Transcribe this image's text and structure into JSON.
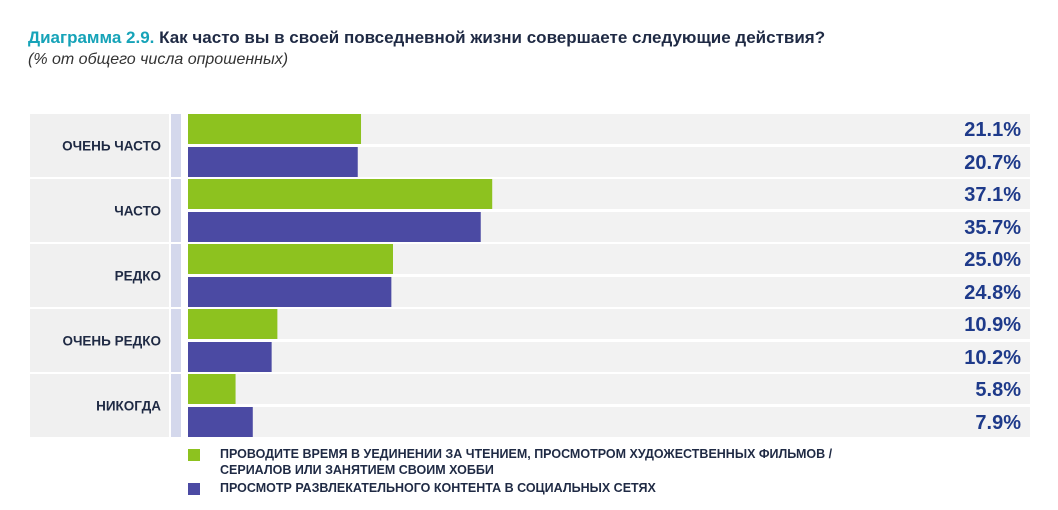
{
  "title": {
    "prefix": "Диаграмма 2.9.",
    "text": "Как часто вы в своей повседневной жизни совершаете следующие действия?"
  },
  "subtitle": "(% от общего числа опрошенных)",
  "colors": {
    "series1": "#8dc21f",
    "series2": "#4b4aa3",
    "band": "#f2f2f2",
    "label_band": "#f0f0f0",
    "divider": "#d4d8ec",
    "value_text": "#1e3a8a",
    "category_text": "#1f2a44"
  },
  "chart_data": {
    "type": "bar",
    "orientation": "horizontal",
    "categories": [
      "ОЧЕНЬ ЧАСТО",
      "ЧАСТО",
      "РЕДКО",
      "ОЧЕНЬ РЕДКО",
      "НИКОГДА"
    ],
    "series": [
      {
        "name": "ПРОВОДИТЕ ВРЕМЯ В УЕДИНЕНИИ ЗА ЧТЕНИЕМ, ПРОСМОТРОМ ХУДОЖЕСТВЕННЫХ ФИЛЬМОВ / СЕРИАЛОВ ИЛИ ЗАНЯТИЕМ СВОИМ ХОББИ",
        "values": [
          21.1,
          37.1,
          25.0,
          10.9,
          5.8
        ],
        "labels": [
          "21.1%",
          "37.1%",
          "25.0%",
          "10.9%",
          "5.8%"
        ]
      },
      {
        "name": "ПРОСМОТР РАЗВЛЕКАТЕЛЬНОГО КОНТЕНТА В СОЦИАЛЬНЫХ СЕТЯХ",
        "values": [
          20.7,
          35.7,
          24.8,
          10.2,
          7.9
        ],
        "labels": [
          "20.7%",
          "35.7%",
          "24.8%",
          "10.2%",
          "7.9%"
        ]
      }
    ],
    "xlim": [
      0,
      100
    ],
    "grid": false,
    "legend_position": "bottom"
  },
  "legend": [
    {
      "line1": "ПРОВОДИТЕ ВРЕМЯ В УЕДИНЕНИИ ЗА ЧТЕНИЕМ, ПРОСМОТРОМ ХУДОЖЕСТВЕННЫХ ФИЛЬМОВ /",
      "line2": "СЕРИАЛОВ ИЛИ ЗАНЯТИЕМ СВОИМ ХОББИ"
    },
    {
      "line1": "ПРОСМОТР РАЗВЛЕКАТЕЛЬНОГО КОНТЕНТА В СОЦИАЛЬНЫХ СЕТЯХ",
      "line2": ""
    }
  ]
}
